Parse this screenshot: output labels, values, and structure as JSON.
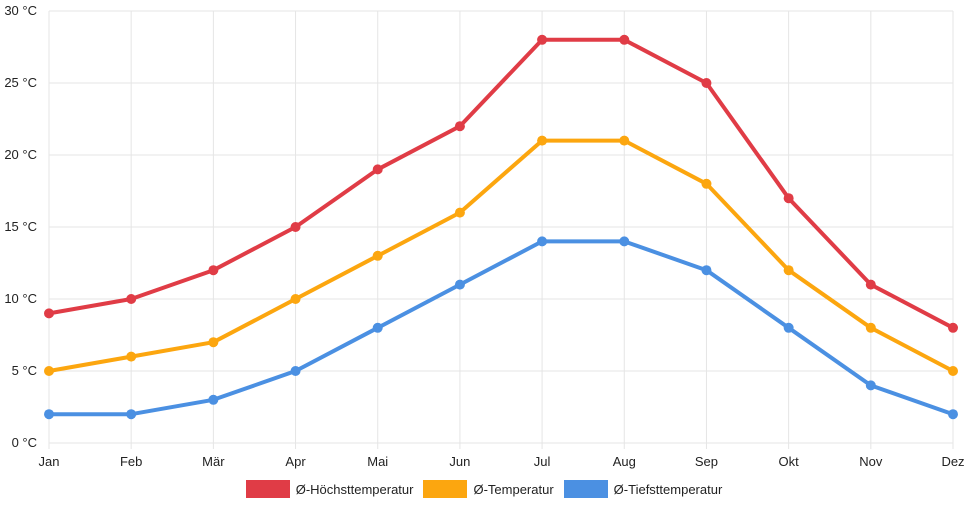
{
  "chart_data": {
    "type": "line",
    "title": "",
    "xlabel": "",
    "ylabel": "",
    "categories": [
      "Jan",
      "Feb",
      "Mär",
      "Apr",
      "Mai",
      "Jun",
      "Jul",
      "Aug",
      "Sep",
      "Okt",
      "Nov",
      "Dez"
    ],
    "ylim": [
      0,
      30
    ],
    "yticks": [
      0,
      5,
      10,
      15,
      20,
      25,
      30
    ],
    "ytick_labels": [
      "0 °C",
      "5 °C",
      "10 °C",
      "15 °C",
      "20 °C",
      "25 °C",
      "30 °C"
    ],
    "grid": true,
    "legend_position": "bottom",
    "series": [
      {
        "name": "Ø-Höchsttemperatur",
        "color": "#e03c46",
        "values": [
          9,
          10,
          12,
          15,
          19,
          22,
          28,
          28,
          25,
          17,
          11,
          8
        ]
      },
      {
        "name": "Ø-Temperatur",
        "color": "#fca60f",
        "values": [
          5,
          6,
          7,
          10,
          13,
          16,
          21,
          21,
          18,
          12,
          8,
          5
        ]
      },
      {
        "name": "Ø-Tiefsttemperatur",
        "color": "#4b90e2",
        "values": [
          2,
          2,
          3,
          5,
          8,
          11,
          14,
          14,
          12,
          8,
          4,
          2
        ]
      }
    ]
  }
}
